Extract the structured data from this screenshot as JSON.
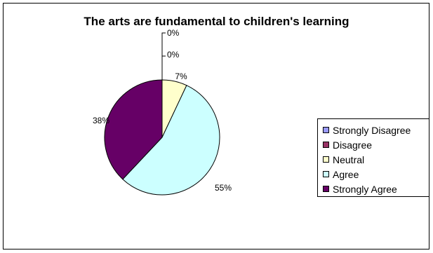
{
  "chart_data": {
    "type": "pie",
    "title": "The arts are fundamental to children's learning",
    "categories": [
      "Strongly Disagree",
      "Disagree",
      "Neutral",
      "Agree",
      "Strongly Agree"
    ],
    "values": [
      0,
      0,
      7,
      55,
      38
    ],
    "data_labels": [
      "0%",
      "0%",
      "7%",
      "55%",
      "38%"
    ],
    "colors": [
      "#9999ff",
      "#993366",
      "#ffffcc",
      "#ccffff",
      "#660066"
    ],
    "legend_position": "right"
  }
}
